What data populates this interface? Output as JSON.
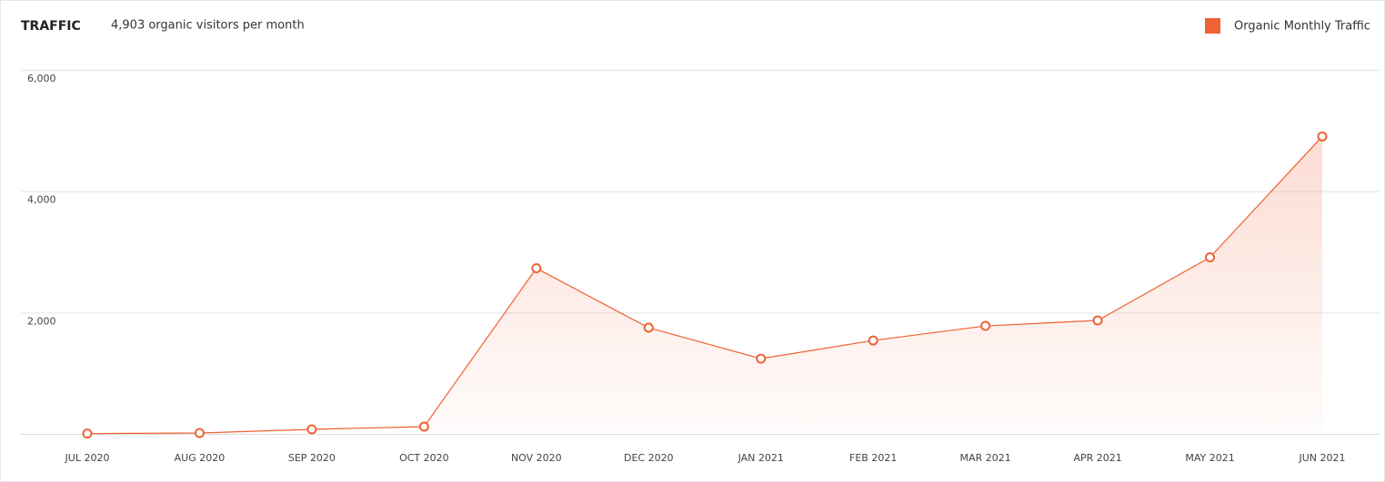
{
  "chart_data": {
    "type": "line",
    "title": "TRAFFIC",
    "subtitle": "4,903 organic visitors per month",
    "categories": [
      "JUL 2020",
      "AUG 2020",
      "SEP 2020",
      "OCT 2020",
      "NOV 2020",
      "DEC 2020",
      "JAN 2021",
      "FEB 2021",
      "MAR 2021",
      "APR 2021",
      "MAY 2021",
      "JUN 2021"
    ],
    "series": [
      {
        "name": "Organic Monthly Traffic",
        "color": "#ee6234",
        "values": [
          5,
          15,
          75,
          120,
          2730,
          1750,
          1240,
          1540,
          1780,
          1870,
          2910,
          4903
        ]
      }
    ],
    "ylim": [
      0,
      6000
    ],
    "yticks": [
      {
        "value": 2000,
        "label": "2,000"
      },
      {
        "value": 4000,
        "label": "4,000"
      },
      {
        "value": 6000,
        "label": "6,000"
      }
    ],
    "grid": true,
    "legend": "top-right"
  }
}
